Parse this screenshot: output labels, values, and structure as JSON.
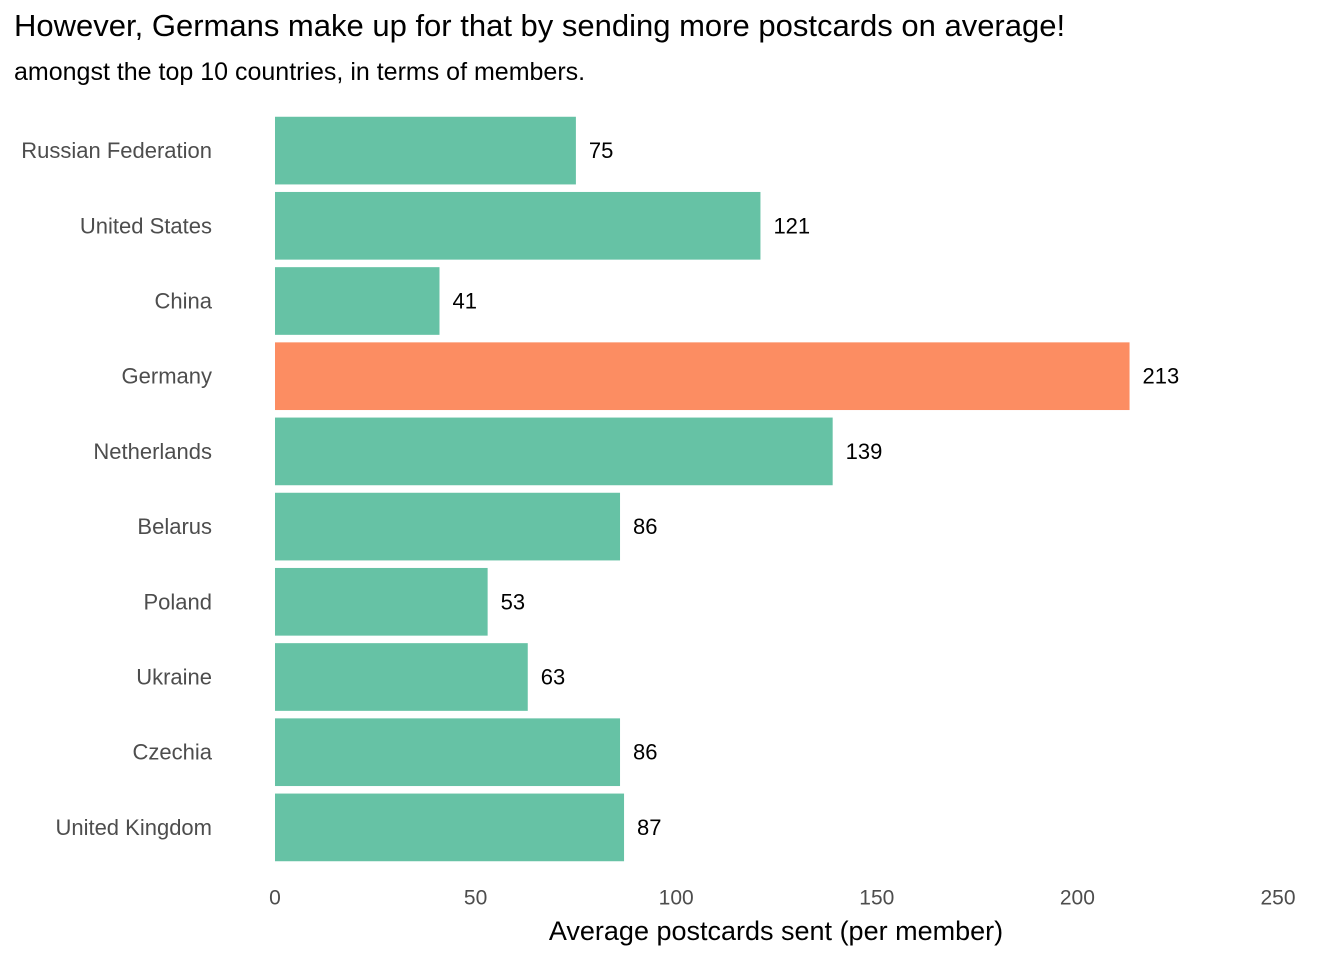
{
  "chart_data": {
    "type": "bar",
    "orientation": "horizontal",
    "title": "However, Germans make up for that by sending more postcards on average!",
    "subtitle": "amongst the top 10 countries, in terms of members.",
    "xlabel": "Average postcards sent (per member)",
    "ylabel": "",
    "xlim": [
      0,
      250
    ],
    "xticks": [
      0,
      50,
      100,
      150,
      200,
      250
    ],
    "categories": [
      "Russian Federation",
      "United States",
      "China",
      "Germany",
      "Netherlands",
      "Belarus",
      "Poland",
      "Ukraine",
      "Czechia",
      "United Kingdom"
    ],
    "values": [
      75,
      121,
      41,
      213,
      139,
      86,
      53,
      63,
      86,
      87
    ],
    "highlight": "Germany",
    "colors": {
      "default": "#66c2a5",
      "highlight": "#fc8d62"
    },
    "grid": false,
    "legend": "none"
  }
}
